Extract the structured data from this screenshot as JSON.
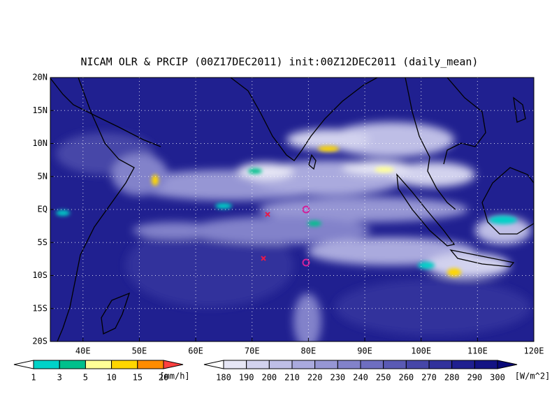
{
  "title": "NICAM OLR & PRCIP (00Z17DEC2011) init:00Z12DEC2011 (daily_mean)",
  "map": {
    "lon_range": [
      34.2,
      120
    ],
    "lat_range": [
      -20,
      20
    ],
    "lon_ticks": [
      {
        "value": 40,
        "label": "40E"
      },
      {
        "value": 50,
        "label": "50E"
      },
      {
        "value": 60,
        "label": "60E"
      },
      {
        "value": 70,
        "label": "70E"
      },
      {
        "value": 80,
        "label": "80E"
      },
      {
        "value": 90,
        "label": "90E"
      },
      {
        "value": 100,
        "label": "100E"
      },
      {
        "value": 110,
        "label": "110E"
      },
      {
        "value": 120,
        "label": "120E"
      }
    ],
    "lat_ticks": [
      {
        "value": 20,
        "label": "20N"
      },
      {
        "value": 15,
        "label": "15N"
      },
      {
        "value": 10,
        "label": "10N"
      },
      {
        "value": 5,
        "label": "5N"
      },
      {
        "value": 0,
        "label": "EQ"
      },
      {
        "value": -5,
        "label": "5S"
      },
      {
        "value": -10,
        "label": "10S"
      },
      {
        "value": -15,
        "label": "15S"
      },
      {
        "value": -20,
        "label": "20S"
      }
    ],
    "grid": true
  },
  "precip_colorbar": {
    "levels": [
      1,
      3,
      5,
      10,
      15,
      20
    ],
    "colors": [
      "#ffffff",
      "#00d2c8",
      "#00c08c",
      "#ffff96",
      "#ffd700",
      "#ff8c00",
      "#ff4040"
    ],
    "unit": "[mm/h]"
  },
  "olr_colorbar": {
    "levels": [
      180,
      190,
      200,
      210,
      220,
      230,
      240,
      250,
      260,
      270,
      280,
      290,
      300
    ],
    "colors": [
      "#ffffff",
      "#e6e6f5",
      "#d2d2ee",
      "#bebee6",
      "#aaaade",
      "#9696d4",
      "#8282ca",
      "#6e6ec0",
      "#5a5ab4",
      "#4646a8",
      "#32329c",
      "#202090",
      "#141484",
      "#0a0a78"
    ],
    "unit": "[W/m^2]"
  }
}
